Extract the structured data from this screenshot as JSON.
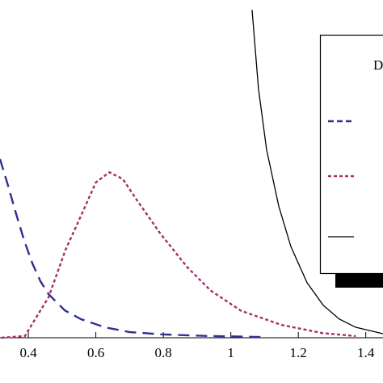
{
  "chart_data": {
    "type": "line",
    "legend_title": "D",
    "xlim": [
      0.316,
      1.451
    ],
    "xticks": [
      0.4,
      0.6,
      0.8,
      1.0,
      1.2,
      1.4
    ],
    "ylim": [
      0,
      1
    ],
    "series": [
      {
        "color": "#2e3192",
        "dash": "14,8",
        "x": [
          0.316,
          0.34,
          0.364,
          0.388,
          0.412,
          0.436,
          0.46,
          0.508,
          0.556,
          0.627,
          0.699,
          0.795,
          0.939,
          1.106
        ],
        "values": [
          0.529,
          0.45,
          0.366,
          0.287,
          0.22,
          0.167,
          0.129,
          0.081,
          0.055,
          0.031,
          0.017,
          0.01,
          0.005,
          0.002
        ]
      },
      {
        "color": "#a3306b",
        "dash": "4,3",
        "x": [
          0.32,
          0.39,
          0.42,
          0.46,
          0.51,
          0.56,
          0.6,
          0.64,
          0.68,
          0.72,
          0.79,
          0.87,
          0.94,
          1.03,
          1.15,
          1.27,
          1.37
        ],
        "values": [
          0,
          0.005,
          0.055,
          0.12,
          0.26,
          0.37,
          0.46,
          0.49,
          0.47,
          0.41,
          0.31,
          0.21,
          0.14,
          0.08,
          0.038,
          0.014,
          0.005
        ]
      },
      {
        "color": "#000000",
        "dash": "none",
        "x": [
          1.063,
          1.082,
          1.106,
          1.142,
          1.178,
          1.226,
          1.274,
          1.322,
          1.37,
          1.451
        ],
        "values": [
          0.971,
          0.737,
          0.557,
          0.39,
          0.27,
          0.163,
          0.096,
          0.055,
          0.031,
          0.012
        ]
      }
    ]
  }
}
